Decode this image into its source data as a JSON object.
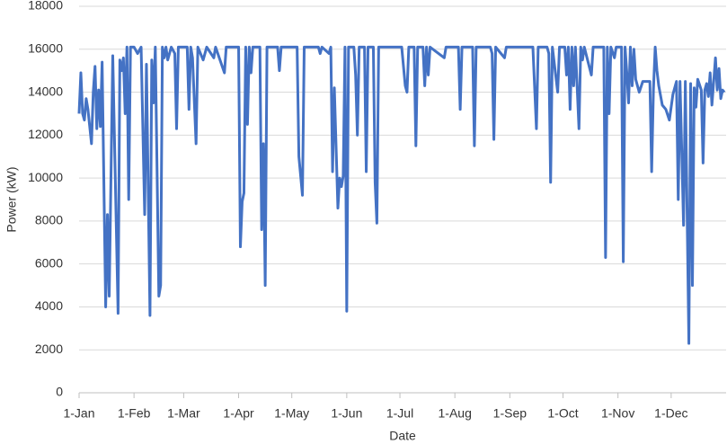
{
  "chart_data": {
    "type": "line",
    "ylabel": "Power (kW)",
    "xlabel": "Date",
    "xlim": [
      0,
      365
    ],
    "ylim": [
      0,
      18000
    ],
    "yticks": [
      0,
      2000,
      4000,
      6000,
      8000,
      10000,
      12000,
      14000,
      16000,
      18000
    ],
    "xticks": [
      {
        "value": 0,
        "label": "1-Jan"
      },
      {
        "value": 31,
        "label": "1-Feb"
      },
      {
        "value": 59,
        "label": "1-Mar"
      },
      {
        "value": 90,
        "label": "1-Apr"
      },
      {
        "value": 120,
        "label": "1-May"
      },
      {
        "value": 151,
        "label": "1-Jun"
      },
      {
        "value": 181,
        "label": "1-Jul"
      },
      {
        "value": 212,
        "label": "1-Aug"
      },
      {
        "value": 243,
        "label": "1-Sep"
      },
      {
        "value": 273,
        "label": "1-Oct"
      },
      {
        "value": 304,
        "label": "1-Nov"
      },
      {
        "value": 334,
        "label": "1-Dec"
      }
    ],
    "grid": true,
    "series": [
      {
        "color": "#4472c4",
        "x": [
          0,
          1,
          2,
          3,
          4,
          5,
          7,
          8,
          9,
          10,
          11,
          12,
          13,
          15,
          16,
          17,
          19,
          22,
          23,
          24,
          25,
          26,
          27,
          28,
          29,
          31,
          33,
          35,
          37,
          38,
          40,
          41,
          42,
          43,
          45,
          46,
          47,
          48,
          49,
          50,
          52,
          54,
          55,
          56,
          59,
          61,
          62,
          63,
          64,
          66,
          67,
          70,
          71,
          72,
          76,
          77,
          82,
          83,
          90,
          91,
          92,
          93,
          94,
          95,
          96,
          97,
          98,
          102,
          103,
          104,
          105,
          106,
          112,
          113,
          114,
          122,
          123,
          124,
          126,
          127,
          135,
          136,
          137,
          141,
          142,
          143,
          144,
          146,
          147,
          148,
          149,
          150,
          151,
          152,
          155,
          156,
          157,
          158,
          161,
          162,
          163,
          166,
          167,
          168,
          169,
          182,
          184,
          185,
          186,
          189,
          190,
          191,
          194,
          195,
          196,
          197,
          198,
          206,
          207,
          214,
          215,
          216,
          222,
          223,
          224,
          232,
          233,
          234,
          235,
          240,
          241,
          256,
          258,
          259,
          264,
          265,
          266,
          267,
          270,
          271,
          274,
          275,
          276,
          277,
          278,
          279,
          280,
          282,
          283,
          284,
          285,
          289,
          290,
          296,
          297,
          298,
          299,
          300,
          302,
          303,
          306,
          307,
          308,
          309,
          310,
          311,
          312,
          313,
          314,
          316,
          318,
          322,
          323,
          324,
          325,
          326,
          327,
          329,
          331,
          333,
          335,
          337,
          338,
          339,
          341,
          342,
          344,
          345,
          346,
          347,
          348,
          349,
          351,
          352,
          353,
          354,
          355,
          356,
          357,
          359,
          360,
          361,
          362,
          363,
          364
        ],
        "values": [
          13000,
          14900,
          13000,
          12700,
          13700,
          13200,
          11600,
          14000,
          15200,
          12300,
          14100,
          12400,
          15400,
          4000,
          8300,
          4500,
          15700,
          3700,
          15500,
          15000,
          15600,
          13000,
          16100,
          9000,
          16100,
          16100,
          15800,
          16100,
          8300,
          15300,
          3600,
          15500,
          13500,
          16100,
          4500,
          5000,
          16100,
          15600,
          16100,
          15500,
          16100,
          15800,
          12300,
          16100,
          16100,
          16100,
          13200,
          16100,
          15600,
          11600,
          16100,
          15500,
          15800,
          16100,
          15600,
          16100,
          14900,
          16100,
          16100,
          6800,
          8900,
          9300,
          16100,
          12500,
          16100,
          14900,
          16100,
          16100,
          7600,
          11600,
          5000,
          16100,
          16100,
          15000,
          16100,
          16100,
          16100,
          11000,
          9200,
          16100,
          16100,
          15800,
          16100,
          15800,
          16100,
          10300,
          14200,
          8600,
          10000,
          9600,
          10100,
          16100,
          3800,
          16100,
          16100,
          14800,
          12000,
          16100,
          16100,
          10300,
          16100,
          16100,
          9800,
          7900,
          16100,
          16100,
          14300,
          14000,
          16100,
          16100,
          11500,
          16100,
          16100,
          14300,
          16100,
          14800,
          16100,
          15600,
          16100,
          16100,
          13200,
          16100,
          16100,
          11500,
          16100,
          16100,
          15800,
          11800,
          16100,
          15600,
          16100,
          16100,
          12300,
          16100,
          16100,
          15800,
          9800,
          16100,
          14000,
          16100,
          16100,
          14800,
          16100,
          13200,
          16100,
          14300,
          16100,
          12300,
          16100,
          15500,
          16100,
          14800,
          16100,
          16100,
          6300,
          16100,
          13000,
          16100,
          15600,
          16100,
          16100,
          6100,
          16100,
          14900,
          13500,
          16100,
          14300,
          16000,
          14600,
          14000,
          14500,
          14500,
          10300,
          14100,
          16100,
          15000,
          14300,
          13400,
          13200,
          12700,
          13900,
          14500,
          9000,
          14500,
          7800,
          14500,
          2300,
          14400,
          5000,
          14200,
          13300,
          14600,
          14100,
          10700,
          14100,
          14400,
          13800,
          14900,
          13400,
          15600,
          14100,
          15100,
          13700,
          14100,
          14000
        ]
      }
    ]
  }
}
